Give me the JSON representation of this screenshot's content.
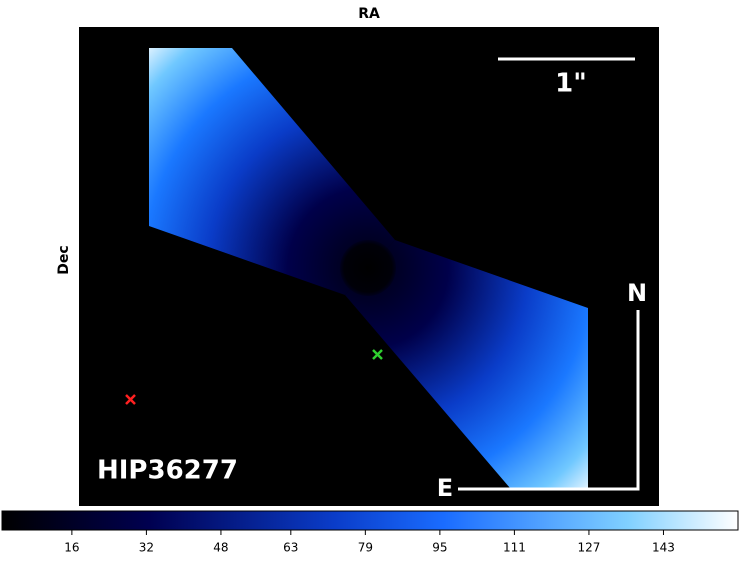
{
  "chart_data": {
    "type": "image",
    "title": "RA",
    "ylabel": "Dec",
    "annotations": {
      "scale": "1\"",
      "north": "N",
      "east": "E",
      "target": "HIP36277"
    },
    "colorbar": {
      "clim": [
        1,
        159
      ],
      "ticks": [
        16,
        32,
        48,
        63,
        79,
        95,
        111,
        127,
        143
      ]
    }
  }
}
